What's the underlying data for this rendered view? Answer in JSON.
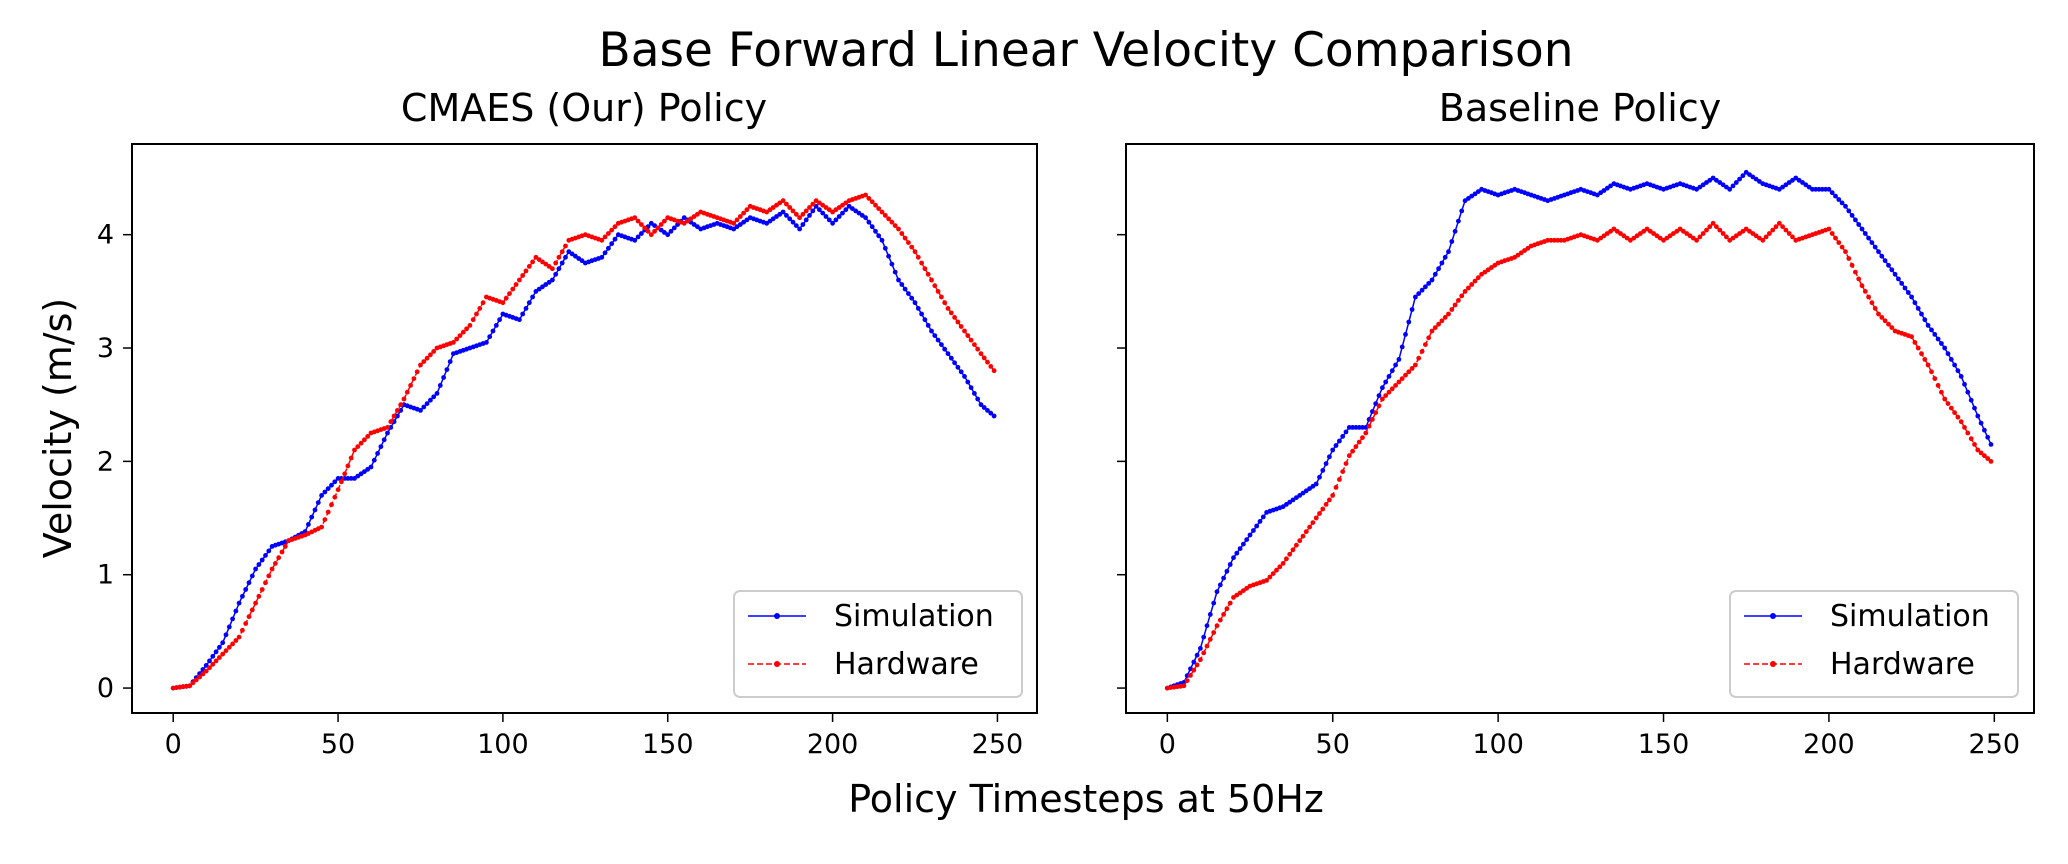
{
  "title": "Base Forward Linear Velocity Comparison",
  "xlabel": "Policy Timesteps at 50Hz",
  "ylabel": "Velocity (m/s)",
  "colors": {
    "simulation": "#0000ff",
    "hardware": "#ff0000"
  },
  "chart_data": [
    {
      "type": "line",
      "title": "CMAES (Our) Policy",
      "xlim": [
        -12.5,
        262
      ],
      "ylim": [
        -0.22,
        4.8
      ],
      "xticks": [
        "0",
        "50",
        "100",
        "150",
        "200",
        "250"
      ],
      "yticks": [
        "0",
        "1",
        "2",
        "3",
        "4"
      ],
      "legend": "lower-right",
      "series": [
        {
          "name": "Simulation",
          "x": [
            0,
            5,
            10,
            15,
            20,
            25,
            30,
            35,
            40,
            45,
            50,
            55,
            60,
            65,
            70,
            75,
            80,
            85,
            90,
            95,
            100,
            105,
            110,
            115,
            120,
            125,
            130,
            135,
            140,
            145,
            150,
            155,
            160,
            165,
            170,
            175,
            180,
            185,
            190,
            195,
            200,
            205,
            210,
            215,
            220,
            225,
            230,
            235,
            240,
            245,
            249
          ],
          "y": [
            0.0,
            0.02,
            0.2,
            0.4,
            0.75,
            1.05,
            1.25,
            1.3,
            1.38,
            1.7,
            1.85,
            1.85,
            1.95,
            2.25,
            2.5,
            2.45,
            2.6,
            2.95,
            3.0,
            3.05,
            3.3,
            3.25,
            3.5,
            3.6,
            3.85,
            3.75,
            3.8,
            4.0,
            3.95,
            4.1,
            4.0,
            4.15,
            4.05,
            4.1,
            4.05,
            4.15,
            4.1,
            4.2,
            4.05,
            4.25,
            4.1,
            4.25,
            4.15,
            3.95,
            3.6,
            3.4,
            3.15,
            2.95,
            2.75,
            2.5,
            2.4
          ]
        },
        {
          "name": "Hardware",
          "x": [
            0,
            5,
            10,
            15,
            20,
            25,
            30,
            35,
            40,
            45,
            50,
            55,
            60,
            65,
            70,
            75,
            80,
            85,
            90,
            95,
            100,
            105,
            110,
            115,
            120,
            125,
            130,
            135,
            140,
            145,
            150,
            155,
            160,
            165,
            170,
            175,
            180,
            185,
            190,
            195,
            200,
            205,
            210,
            215,
            220,
            225,
            230,
            235,
            240,
            245,
            249
          ],
          "y": [
            0.0,
            0.02,
            0.15,
            0.3,
            0.45,
            0.75,
            1.05,
            1.3,
            1.35,
            1.42,
            1.75,
            2.1,
            2.25,
            2.3,
            2.55,
            2.85,
            3.0,
            3.05,
            3.2,
            3.45,
            3.4,
            3.6,
            3.8,
            3.7,
            3.95,
            4.0,
            3.95,
            4.1,
            4.15,
            4.0,
            4.15,
            4.1,
            4.2,
            4.15,
            4.1,
            4.25,
            4.2,
            4.3,
            4.15,
            4.3,
            4.2,
            4.3,
            4.35,
            4.2,
            4.05,
            3.85,
            3.6,
            3.35,
            3.15,
            2.95,
            2.8
          ]
        }
      ]
    },
    {
      "type": "line",
      "title": "Baseline Policy",
      "xlim": [
        -12.5,
        262
      ],
      "ylim": [
        -0.22,
        4.8
      ],
      "xticks": [
        "0",
        "50",
        "100",
        "150",
        "200",
        "250"
      ],
      "yticks": [
        "0",
        "1",
        "2",
        "3",
        "4"
      ],
      "legend": "lower-right",
      "series": [
        {
          "name": "Simulation",
          "x": [
            0,
            5,
            10,
            15,
            20,
            25,
            30,
            35,
            40,
            45,
            50,
            55,
            60,
            65,
            70,
            75,
            80,
            85,
            90,
            95,
            100,
            105,
            110,
            115,
            120,
            125,
            130,
            135,
            140,
            145,
            150,
            155,
            160,
            165,
            170,
            175,
            180,
            185,
            190,
            195,
            200,
            205,
            210,
            215,
            220,
            225,
            230,
            235,
            240,
            245,
            249
          ],
          "y": [
            0.0,
            0.05,
            0.35,
            0.85,
            1.15,
            1.35,
            1.55,
            1.6,
            1.7,
            1.8,
            2.1,
            2.3,
            2.3,
            2.65,
            2.9,
            3.45,
            3.6,
            3.85,
            4.3,
            4.4,
            4.35,
            4.4,
            4.35,
            4.3,
            4.35,
            4.4,
            4.35,
            4.45,
            4.4,
            4.45,
            4.4,
            4.45,
            4.4,
            4.5,
            4.4,
            4.55,
            4.45,
            4.4,
            4.5,
            4.4,
            4.4,
            4.25,
            4.05,
            3.85,
            3.65,
            3.45,
            3.2,
            3.0,
            2.75,
            2.4,
            2.15
          ]
        },
        {
          "name": "Hardware",
          "x": [
            0,
            5,
            10,
            15,
            20,
            25,
            30,
            35,
            40,
            45,
            50,
            55,
            60,
            65,
            70,
            75,
            80,
            85,
            90,
            95,
            100,
            105,
            110,
            115,
            120,
            125,
            130,
            135,
            140,
            145,
            150,
            155,
            160,
            165,
            170,
            175,
            180,
            185,
            190,
            195,
            200,
            205,
            210,
            215,
            220,
            225,
            230,
            235,
            240,
            245,
            249
          ],
          "y": [
            0.0,
            0.02,
            0.25,
            0.55,
            0.8,
            0.9,
            0.95,
            1.1,
            1.3,
            1.5,
            1.7,
            2.05,
            2.25,
            2.55,
            2.7,
            2.85,
            3.15,
            3.3,
            3.5,
            3.65,
            3.75,
            3.8,
            3.9,
            3.95,
            3.95,
            4.0,
            3.95,
            4.05,
            3.95,
            4.05,
            3.95,
            4.05,
            3.95,
            4.1,
            3.95,
            4.05,
            3.95,
            4.1,
            3.95,
            4.0,
            4.05,
            3.85,
            3.55,
            3.3,
            3.15,
            3.1,
            2.85,
            2.55,
            2.35,
            2.1,
            2.0
          ]
        }
      ]
    }
  ]
}
